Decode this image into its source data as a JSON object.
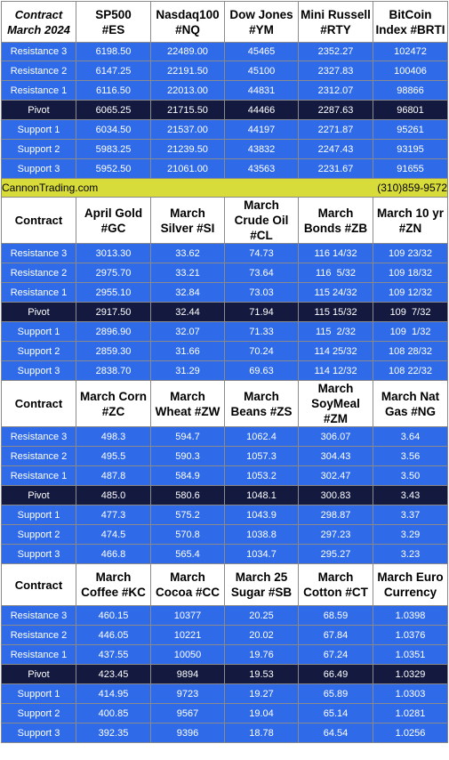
{
  "sections": [
    {
      "corner": "Contract\nMarch 2024",
      "corner_italic": true,
      "headers": [
        "SP500\n#ES",
        "Nasdaq100\n#NQ",
        "Dow Jones\n#YM",
        "Mini Russell\n#RTY",
        "BitCoin\nIndex #BRTI"
      ],
      "rows": [
        {
          "label": "Resistance 3",
          "values": [
            "6198.50",
            "22489.00",
            "45465",
            "2352.27",
            "102472"
          ]
        },
        {
          "label": "Resistance 2",
          "values": [
            "6147.25",
            "22191.50",
            "45100",
            "2327.83",
            "100406"
          ]
        },
        {
          "label": "Resistance 1",
          "values": [
            "6116.50",
            "22013.00",
            "44831",
            "2312.07",
            "98866"
          ]
        },
        {
          "label": "Pivot",
          "values": [
            "6065.25",
            "21715.50",
            "44466",
            "2287.63",
            "96801"
          ],
          "pivot": true
        },
        {
          "label": "Support 1",
          "values": [
            "6034.50",
            "21537.00",
            "44197",
            "2271.87",
            "95261"
          ]
        },
        {
          "label": "Support 2",
          "values": [
            "5983.25",
            "21239.50",
            "43832",
            "2247.43",
            "93195"
          ]
        },
        {
          "label": "Support 3",
          "values": [
            "5952.50",
            "21061.00",
            "43563",
            "2231.67",
            "91655"
          ]
        }
      ],
      "banner": {
        "left": "CannonTrading.com",
        "right": "(310)859-9572"
      }
    },
    {
      "corner": "Contract",
      "corner_italic": false,
      "headers": [
        "April Gold\n#GC",
        "March\nSilver #SI",
        "March\nCrude Oil\n#CL",
        "March\nBonds  #ZB",
        "March 10 yr\n#ZN"
      ],
      "rows": [
        {
          "label": "Resistance 3",
          "values": [
            "3013.30",
            "33.62",
            "74.73",
            "116 14/32",
            "109 23/32"
          ]
        },
        {
          "label": "Resistance 2",
          "values": [
            "2975.70",
            "33.21",
            "73.64",
            "116  5/32",
            "109 18/32"
          ]
        },
        {
          "label": "Resistance 1",
          "values": [
            "2955.10",
            "32.84",
            "73.03",
            "115 24/32",
            "109 12/32"
          ]
        },
        {
          "label": "Pivot",
          "values": [
            "2917.50",
            "32.44",
            "71.94",
            "115 15/32",
            "109  7/32"
          ],
          "pivot": true
        },
        {
          "label": "Support 1",
          "values": [
            "2896.90",
            "32.07",
            "71.33",
            "115  2/32",
            "109  1/32"
          ]
        },
        {
          "label": "Support 2",
          "values": [
            "2859.30",
            "31.66",
            "70.24",
            "114 25/32",
            "108 28/32"
          ]
        },
        {
          "label": "Support 3",
          "values": [
            "2838.70",
            "31.29",
            "69.63",
            "114 12/32",
            "108 22/32"
          ]
        }
      ]
    },
    {
      "corner": "Contract",
      "corner_italic": false,
      "headers": [
        "March Corn\n#ZC",
        "March\nWheat #ZW",
        "March\nBeans #ZS",
        "March\nSoyMeal\n#ZM",
        "March Nat\nGas #NG"
      ],
      "rows": [
        {
          "label": "Resistance 3",
          "values": [
            "498.3",
            "594.7",
            "1062.4",
            "306.07",
            "3.64"
          ]
        },
        {
          "label": "Resistance 2",
          "values": [
            "495.5",
            "590.3",
            "1057.3",
            "304.43",
            "3.56"
          ]
        },
        {
          "label": "Resistance 1",
          "values": [
            "487.8",
            "584.9",
            "1053.2",
            "302.47",
            "3.50"
          ]
        },
        {
          "label": "Pivot",
          "values": [
            "485.0",
            "580.6",
            "1048.1",
            "300.83",
            "3.43"
          ],
          "pivot": true
        },
        {
          "label": "Support 1",
          "values": [
            "477.3",
            "575.2",
            "1043.9",
            "298.87",
            "3.37"
          ]
        },
        {
          "label": "Support 2",
          "values": [
            "474.5",
            "570.8",
            "1038.8",
            "297.23",
            "3.29"
          ]
        },
        {
          "label": "Support 3",
          "values": [
            "466.8",
            "565.4",
            "1034.7",
            "295.27",
            "3.23"
          ]
        }
      ]
    },
    {
      "corner": "Contract",
      "corner_italic": false,
      "headers": [
        "March\nCoffee #KC",
        "March\nCocoa #CC",
        "March 25\nSugar #SB",
        "March\nCotton #CT",
        "March Euro\nCurrency"
      ],
      "rows": [
        {
          "label": "Resistance 3",
          "values": [
            "460.15",
            "10377",
            "20.25",
            "68.59",
            "1.0398"
          ]
        },
        {
          "label": "Resistance 2",
          "values": [
            "446.05",
            "10221",
            "20.02",
            "67.84",
            "1.0376"
          ]
        },
        {
          "label": "Resistance 1",
          "values": [
            "437.55",
            "10050",
            "19.76",
            "67.24",
            "1.0351"
          ]
        },
        {
          "label": "Pivot",
          "values": [
            "423.45",
            "9894",
            "19.53",
            "66.49",
            "1.0329"
          ],
          "pivot": true
        },
        {
          "label": "Support 1",
          "values": [
            "414.95",
            "9723",
            "19.27",
            "65.89",
            "1.0303"
          ]
        },
        {
          "label": "Support 2",
          "values": [
            "400.85",
            "9567",
            "19.04",
            "65.14",
            "1.0281"
          ]
        },
        {
          "label": "Support 3",
          "values": [
            "392.35",
            "9396",
            "18.78",
            "64.54",
            "1.0256"
          ]
        }
      ]
    }
  ],
  "colors": {
    "row_bg": "#2f6be8",
    "pivot_bg": "#141a3f",
    "banner_bg": "#d8dc3a",
    "header_bg": "#ffffff"
  }
}
